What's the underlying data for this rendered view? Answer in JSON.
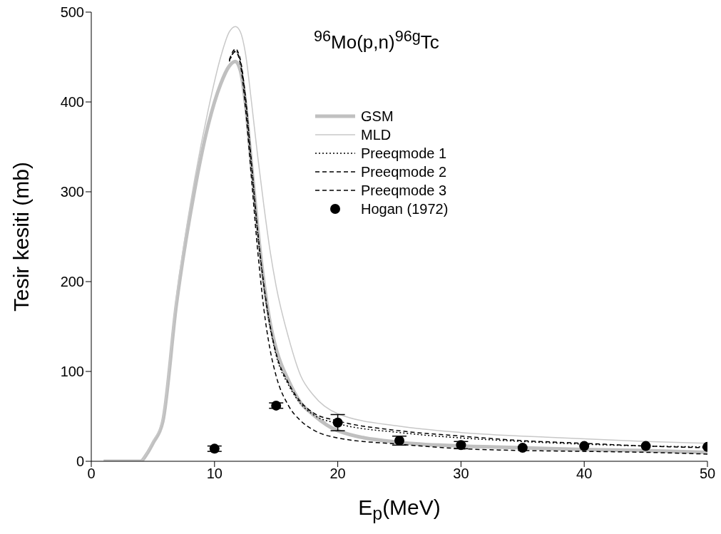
{
  "chart_data": {
    "type": "line",
    "title": "$^{96}$Mo(p,n)$^{96g}$Tc",
    "xlabel": "E$_{p}$(MeV)",
    "ylabel": "Tesir kesiti (mb)",
    "xlim": [
      0,
      50
    ],
    "xticks": [
      0,
      10,
      20,
      30,
      40,
      50
    ],
    "ylim": [
      0,
      500
    ],
    "yticks": [
      0,
      100,
      200,
      300,
      400,
      500
    ],
    "grid": false,
    "legend": "top right",
    "series": [
      {
        "name": "GSM",
        "color": "#c0c0c0",
        "line_style": "solid",
        "marker": "none",
        "x": [
          1,
          4,
          4.5,
          5,
          5.8,
          6.9,
          8.4,
          9.5,
          10.5,
          11.2,
          11.7,
          12.1,
          12.5,
          13,
          13.5,
          14,
          14.5,
          15,
          16,
          17,
          18,
          20,
          25,
          30,
          35,
          40,
          45,
          50
        ],
        "values": [
          0,
          0,
          8,
          20,
          44,
          174,
          303,
          375,
          420,
          440,
          445,
          435,
          400,
          330,
          260,
          200,
          155,
          125,
          90,
          65,
          52,
          34,
          21,
          17,
          15,
          13,
          12,
          10
        ]
      },
      {
        "name": "MLD",
        "color": "#c8c8c8",
        "line_style": "solid",
        "marker": "none",
        "x": [
          1,
          4,
          4.5,
          5,
          5.8,
          6.9,
          8.4,
          9.5,
          10.5,
          11.2,
          11.7,
          12.1,
          12.5,
          13,
          13.5,
          14,
          14.5,
          15,
          16,
          17,
          18,
          20,
          25,
          30,
          35,
          40,
          45,
          50
        ],
        "values": [
          0,
          0,
          9,
          22,
          48,
          182,
          315,
          392,
          450,
          478,
          484,
          478,
          455,
          400,
          340,
          285,
          235,
          195,
          138,
          95,
          74,
          53,
          39,
          32,
          28,
          25,
          22,
          20
        ]
      },
      {
        "name": "Preeqmode 1",
        "color": "#000000",
        "line_style": "dotted",
        "marker": "none",
        "x": [
          11.2,
          11.7,
          12.1,
          12.5,
          13,
          13.5,
          14,
          14.5,
          15,
          16,
          17,
          18,
          20,
          25,
          30,
          35,
          40,
          45,
          50
        ],
        "values": [
          445,
          457,
          445,
          405,
          330,
          255,
          195,
          150,
          118,
          85,
          64,
          52,
          42,
          32,
          26,
          22,
          19,
          17,
          16
        ]
      },
      {
        "name": "Preeqmode 2",
        "color": "#000000",
        "line_style": "dashed",
        "marker": "none",
        "x": [
          11.2,
          11.7,
          12.1,
          12.5,
          13,
          13.5,
          14,
          14.5,
          15,
          16,
          17,
          18,
          20,
          25,
          30,
          35,
          40,
          45,
          50
        ],
        "values": [
          447,
          459,
          447,
          407,
          332,
          257,
          197,
          152,
          120,
          87,
          66,
          54,
          45,
          34,
          28,
          23,
          20,
          17,
          15
        ]
      },
      {
        "name": "Preeqmode 3",
        "color": "#000000",
        "line_style": "dashed",
        "marker": "none",
        "x": [
          11.2,
          11.7,
          12.1,
          12.5,
          13,
          13.5,
          14,
          14.5,
          15,
          16,
          17,
          18,
          20,
          25,
          30,
          35,
          40,
          45,
          50
        ],
        "values": [
          446,
          456,
          442,
          395,
          315,
          235,
          170,
          125,
          95,
          62,
          45,
          35,
          26,
          19,
          14,
          12,
          11,
          10,
          8
        ]
      },
      {
        "name": "Hogan (1972)",
        "type": "scatter",
        "color": "#000000",
        "marker": "circle",
        "x": [
          10,
          15,
          20,
          25,
          30,
          35,
          40,
          45,
          50
        ],
        "values": [
          14,
          62,
          43,
          23,
          18,
          15,
          17,
          17,
          16
        ],
        "errors": [
          3,
          3,
          9,
          5,
          4,
          null,
          null,
          null,
          null
        ]
      }
    ]
  }
}
